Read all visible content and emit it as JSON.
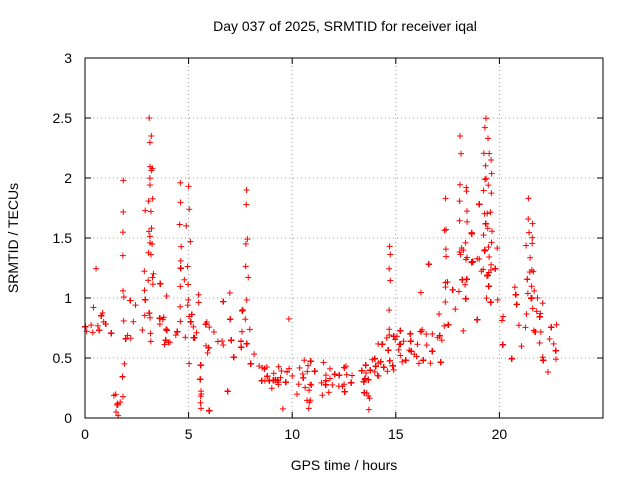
{
  "chart_data": {
    "type": "scatter",
    "title": "Day 037 of 2025, SRMTID for receiver iqal",
    "xlabel": "GPS time / hours",
    "ylabel": "SRMTID / TECUs",
    "xlim": [
      0,
      25
    ],
    "ylim": [
      0,
      3
    ],
    "xticks": [
      0,
      5,
      10,
      15,
      20
    ],
    "xtick_labels": [
      "0",
      "5",
      "10",
      "15",
      "20"
    ],
    "yticks": [
      0,
      0.5,
      1,
      1.5,
      2,
      2.5,
      3
    ],
    "ytick_labels": [
      "0",
      "0.5",
      "1",
      "1.5",
      "2",
      "2.5",
      "3"
    ],
    "grid": true,
    "marker": "+",
    "color": "#ff0000",
    "series": [
      {
        "name": "SRMTID",
        "profile_x": [
          0.0,
          0.5,
          1.0,
          1.5,
          1.8,
          2.0,
          2.5,
          3.0,
          3.5,
          4.0,
          4.5,
          5.0,
          5.5,
          6.0,
          6.5,
          7.0,
          7.5,
          7.8,
          8.2,
          9.0,
          10.0,
          11.0,
          12.0,
          13.0,
          13.8,
          14.5,
          15.0,
          16.0,
          17.0,
          17.5,
          18.0,
          18.5,
          19.0,
          19.5,
          20.0,
          20.5,
          21.0,
          21.5,
          22.0,
          22.8
        ],
        "profile_y": [
          0.7,
          0.75,
          0.8,
          0.45,
          0.4,
          0.9,
          0.75,
          1.0,
          0.85,
          0.75,
          0.8,
          0.85,
          0.6,
          0.55,
          0.6,
          0.7,
          0.75,
          0.85,
          0.45,
          0.35,
          0.38,
          0.32,
          0.3,
          0.33,
          0.35,
          0.55,
          0.6,
          0.65,
          0.7,
          0.95,
          1.1,
          1.2,
          1.15,
          1.25,
          0.9,
          0.85,
          0.8,
          1.0,
          0.7,
          0.55
        ],
        "spread_x": [
          0.0,
          1.5,
          2.0,
          3.0,
          5.0,
          7.5,
          8.5,
          12.0,
          14.0,
          15.0,
          17.5,
          19.5,
          21.5,
          22.8
        ],
        "spread_y": [
          0.22,
          0.3,
          0.4,
          0.45,
          0.4,
          0.35,
          0.18,
          0.15,
          0.2,
          0.28,
          0.35,
          0.45,
          0.35,
          0.22
        ],
        "point_count": 2200,
        "peaks": [
          {
            "x": 1.85,
            "y": 1.98
          },
          {
            "x": 3.1,
            "y": 2.5
          },
          {
            "x": 3.2,
            "y": 2.35
          },
          {
            "x": 3.25,
            "y": 2.08
          },
          {
            "x": 4.6,
            "y": 1.96
          },
          {
            "x": 5.0,
            "y": 1.93
          },
          {
            "x": 7.8,
            "y": 1.9
          },
          {
            "x": 14.7,
            "y": 1.43
          },
          {
            "x": 17.4,
            "y": 1.83
          },
          {
            "x": 18.1,
            "y": 2.35
          },
          {
            "x": 18.4,
            "y": 1.92
          },
          {
            "x": 19.3,
            "y": 2.42
          },
          {
            "x": 19.45,
            "y": 2.33
          },
          {
            "x": 19.6,
            "y": 2.15
          },
          {
            "x": 21.4,
            "y": 1.83
          },
          {
            "x": 21.6,
            "y": 1.62
          }
        ],
        "troughs": [
          {
            "x": 1.5,
            "y": 0.05
          },
          {
            "x": 1.6,
            "y": 0.02
          },
          {
            "x": 5.6,
            "y": 0.08
          },
          {
            "x": 10.8,
            "y": 0.08
          },
          {
            "x": 13.7,
            "y": 0.07
          }
        ]
      }
    ]
  }
}
